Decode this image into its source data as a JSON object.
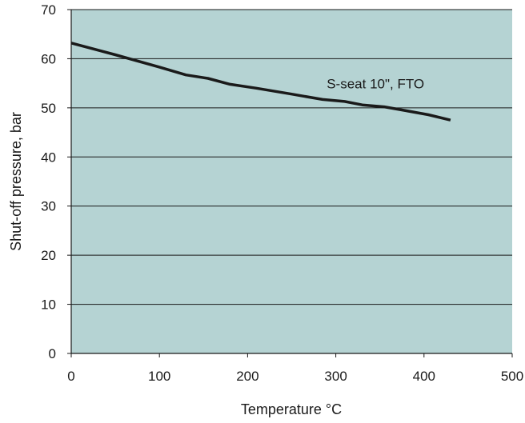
{
  "chart_data": {
    "type": "line",
    "title": "",
    "xlabel": "Temperature °C",
    "ylabel": "Shut-off pressure, bar",
    "xlim": [
      0,
      500
    ],
    "ylim": [
      0,
      70
    ],
    "x_ticks": [
      0,
      100,
      200,
      300,
      400,
      500
    ],
    "y_ticks": [
      0,
      10,
      20,
      30,
      40,
      50,
      60,
      70
    ],
    "grid": "horizontal",
    "colors": {
      "plot_background": "#b5d3d3",
      "line": "#1a1a1a",
      "grid": "#1a1a1a"
    },
    "series": [
      {
        "name": "S-seat 10\", FTO",
        "x": [
          0,
          50,
          100,
          130,
          155,
          180,
          210,
          250,
          285,
          310,
          330,
          355,
          380,
          405,
          430
        ],
        "y": [
          63.2,
          60.8,
          58.3,
          56.7,
          56.0,
          54.8,
          54.0,
          52.8,
          51.7,
          51.3,
          50.6,
          50.2,
          49.4,
          48.6,
          47.5
        ]
      }
    ],
    "annotations": [
      {
        "text": "S-seat 10\", FTO",
        "x": 345,
        "y": 54
      }
    ]
  }
}
